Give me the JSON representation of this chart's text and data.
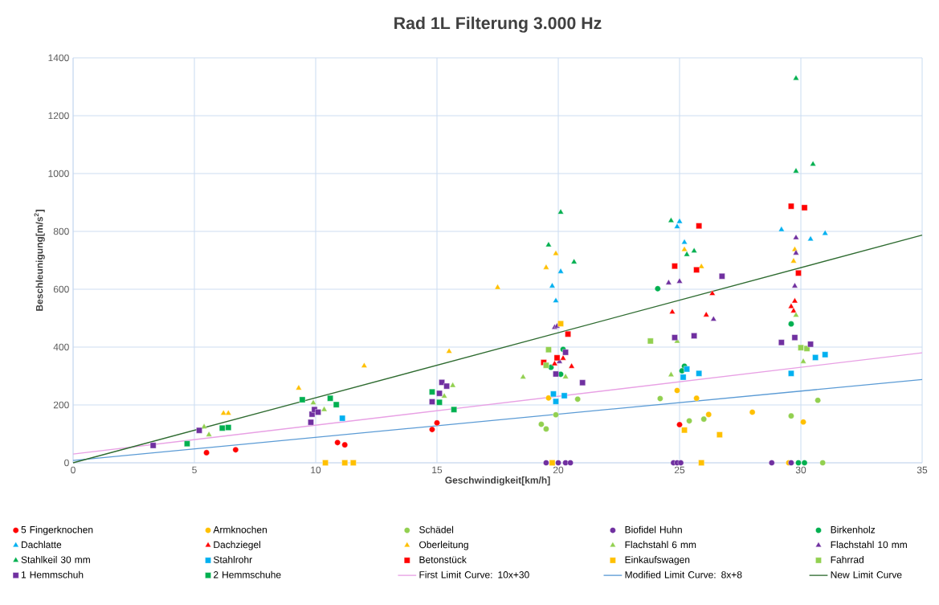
{
  "chart_data": {
    "type": "scatter",
    "title": "Rad 1L Filterung 3.000 Hz",
    "xlabel": "Geschwindigkeit[km/h]",
    "ylabel": "Beschleunigung[m/s$^{2}$]",
    "xlim": [
      0,
      35
    ],
    "ylim": [
      0,
      1400
    ],
    "xticks": [
      0,
      5,
      10,
      15,
      20,
      25,
      30,
      35
    ],
    "yticks": [
      0,
      200,
      400,
      600,
      800,
      1000,
      1200,
      1400
    ],
    "grid": true,
    "legend": "bottom",
    "series": [
      {
        "name": "5 Fingerknochen",
        "color": "#ff0000",
        "marker": "circle",
        "x": [
          5.5,
          6.7,
          10.9,
          11.2,
          14.8,
          15,
          25
        ],
        "values": [
          35,
          45,
          70,
          62,
          115,
          138,
          132
        ]
      },
      {
        "name": "Armknochen",
        "color": "#ffc000",
        "marker": "circle",
        "x": [
          19.6,
          24.9,
          25.7,
          26.2,
          28,
          30.1,
          29.5
        ],
        "values": [
          224,
          250,
          223,
          167,
          175,
          141,
          0
        ]
      },
      {
        "name": "Schädel",
        "color": "#92d050",
        "marker": "circle",
        "x": [
          19.3,
          19.5,
          19.9,
          20.8,
          24.2,
          25.4,
          26,
          29.6,
          30.7,
          30.9
        ],
        "values": [
          133,
          117,
          166,
          220,
          222,
          145,
          151,
          162,
          216,
          0
        ]
      },
      {
        "name": "Biofidel Huhn",
        "color": "#7030a0",
        "marker": "circle",
        "x": [
          19.5,
          20.0,
          20.3,
          20.5,
          24.75,
          24.9,
          25.05,
          28.8,
          29.6
        ],
        "values": [
          0,
          0,
          0,
          0,
          0,
          0,
          0,
          0,
          0
        ]
      },
      {
        "name": "Birkenholz",
        "color": "#00b050",
        "marker": "circle",
        "x": [
          19.7,
          20.2,
          20.1,
          24.1,
          25.2,
          25.1,
          29.6,
          29.9,
          30.15
        ],
        "values": [
          330,
          392,
          306,
          602,
          334,
          318,
          480,
          0,
          0
        ]
      },
      {
        "name": "Dachlatte",
        "color": "#00b0f0",
        "marker": "triangle",
        "x": [
          19.75,
          19.9,
          20.1,
          25,
          24.9,
          25.2,
          29.2,
          30.4,
          31
        ],
        "values": [
          611,
          560,
          661,
          834,
          816,
          762,
          806,
          773,
          793
        ]
      },
      {
        "name": "Dachziegel",
        "color": "#ff0000",
        "marker": "triangle",
        "x": [
          19.85,
          20.2,
          20.55,
          24.7,
          26.1,
          26.35,
          29.75,
          29.6,
          29.7
        ],
        "values": [
          342,
          361,
          333,
          521,
          511,
          585,
          559,
          540,
          525
        ]
      },
      {
        "name": "Oberleitung",
        "color": "#ffc000",
        "marker": "triangle",
        "x": [
          6.2,
          6.4,
          9.3,
          12,
          15.5,
          17.5,
          19.5,
          19.9,
          25.2,
          25.9,
          29.75,
          29.7
        ],
        "values": [
          171,
          171,
          258,
          335,
          385,
          606,
          675,
          723,
          737,
          678,
          737,
          697
        ]
      },
      {
        "name": "Flachstahl 6 mm",
        "color": "#92d050",
        "marker": "triangle",
        "x": [
          5.4,
          5.6,
          9.9,
          10.35,
          15.3,
          15.65,
          18.55,
          20.3,
          24.65,
          24.9,
          29.8,
          30.1
        ],
        "values": [
          124,
          97,
          207,
          184,
          230,
          267,
          296,
          297,
          304,
          420,
          510,
          350
        ]
      },
      {
        "name": "Flachstahl 10 mm",
        "color": "#7030a0",
        "marker": "triangle",
        "x": [
          19.85,
          19.95,
          20.05,
          24.55,
          25,
          26.4,
          29.8,
          29.8,
          29.75
        ],
        "values": [
          468,
          472,
          350,
          622,
          627,
          496,
          778,
          725,
          611
        ]
      },
      {
        "name": "Stahlkeil 30 mm",
        "color": "#00b050",
        "marker": "triangle",
        "x": [
          19.6,
          20.1,
          20.65,
          24.65,
          25.3,
          25.6,
          29.8,
          29.8,
          30.5
        ],
        "values": [
          753,
          866,
          694,
          837,
          720,
          732,
          1329,
          1008,
          1032
        ]
      },
      {
        "name": "Stahlrohr",
        "color": "#00b0f0",
        "marker": "square",
        "x": [
          11.1,
          19.8,
          19.9,
          20.25,
          25.15,
          25.3,
          25.8,
          29.6,
          30.6,
          31
        ],
        "values": [
          154,
          238,
          212,
          232,
          296,
          324,
          309,
          309,
          364,
          374
        ]
      },
      {
        "name": "Betonstück",
        "color": "#ff0000",
        "marker": "square",
        "x": [
          19.4,
          19.95,
          20.4,
          24.8,
          25.7,
          25.8,
          29.6,
          30.15,
          29.9
        ],
        "values": [
          347,
          363,
          445,
          680,
          667,
          819,
          887,
          882,
          656
        ]
      },
      {
        "name": "Einkaufswagen",
        "color": "#ffc000",
        "marker": "square",
        "x": [
          10.4,
          11.2,
          11.55,
          19.75,
          20.1,
          25.2,
          26.65,
          25.9
        ],
        "values": [
          0,
          0,
          0,
          0,
          481,
          113,
          97,
          0
        ]
      },
      {
        "name": "Fahrrad",
        "color": "#92d050",
        "marker": "square",
        "x": [
          19.5,
          19.6,
          23.8,
          30,
          30.25
        ],
        "values": [
          337,
          391,
          421,
          398,
          395
        ]
      },
      {
        "name": "1 Hemmschuh",
        "color": "#7030a0",
        "marker": "square",
        "x": [
          3.3,
          5.2,
          9.8,
          9.85,
          9.95,
          10.1,
          14.8,
          15.1,
          15.2,
          15.4,
          19.9,
          20.3,
          21,
          24.8,
          25.6,
          26.75,
          29.2,
          29.75,
          30.4
        ],
        "values": [
          60,
          112,
          140,
          168,
          184,
          175,
          211,
          240,
          278,
          265,
          307,
          382,
          277,
          433,
          439,
          645,
          416,
          433,
          410
        ]
      },
      {
        "name": "2 Hemmschuhe",
        "color": "#00b050",
        "marker": "square",
        "x": [
          4.7,
          6.15,
          6.4,
          9.45,
          10.6,
          10.85,
          14.8,
          15.1,
          15.7
        ],
        "values": [
          66,
          120,
          122,
          218,
          223,
          201,
          245,
          209,
          184
        ]
      },
      {
        "name": "First Limit Curve: 10x+30",
        "type": "line",
        "color": "#e8a0e4",
        "marker": "none",
        "x": [
          0,
          35
        ],
        "values": [
          30,
          380
        ]
      },
      {
        "name": "Modified Limit Curve: 8x+8",
        "type": "line",
        "color": "#5b9bd5",
        "marker": "none",
        "x": [
          0,
          35
        ],
        "values": [
          8,
          288
        ]
      },
      {
        "name": "New Limit Curve",
        "type": "line",
        "color": "#2e6b30",
        "marker": "none",
        "x": [
          0,
          35
        ],
        "values": [
          0,
          787
        ]
      }
    ]
  }
}
